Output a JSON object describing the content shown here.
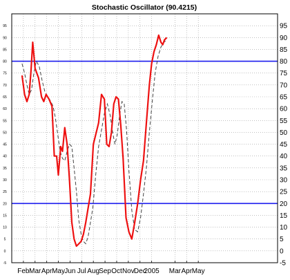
{
  "chart_data": {
    "type": "line",
    "title": "Stochastic Oscillator (90.4215)",
    "xlabel": "",
    "ylabel": "",
    "ylim": [
      -5,
      100
    ],
    "xlim": [
      0,
      22.8
    ],
    "x_tick_labels": [
      {
        "label": "Feb",
        "x": 1
      },
      {
        "label": "Mar",
        "x": 2
      },
      {
        "label": "Apr",
        "x": 3
      },
      {
        "label": "May",
        "x": 4
      },
      {
        "label": "Jun",
        "x": 5
      },
      {
        "label": "Jul",
        "x": 6
      },
      {
        "label": "Aug",
        "x": 7
      },
      {
        "label": "Sep",
        "x": 8
      },
      {
        "label": "Oct",
        "x": 9
      },
      {
        "label": "Nov",
        "x": 10
      },
      {
        "label": "Dec",
        "x": 11
      },
      {
        "label": "2005",
        "x": 12
      },
      {
        "label": "Mar",
        "x": 14
      },
      {
        "label": "Apr",
        "x": 15
      },
      {
        "label": "May",
        "x": 16
      }
    ],
    "y_ticks": [
      100,
      95,
      90,
      85,
      80,
      75,
      70,
      65,
      60,
      55,
      50,
      45,
      40,
      35,
      30,
      25,
      20,
      15,
      10,
      5,
      0,
      -5
    ],
    "y_tick_labels": [
      "",
      "95",
      "90",
      "85",
      "80",
      "75",
      "70",
      "65",
      "60",
      "55",
      "50",
      "45",
      "40",
      "35",
      "30",
      "25",
      "20",
      "15",
      "10",
      "5",
      "0",
      "-5"
    ],
    "reference_lines": [
      80,
      20
    ],
    "grid": true,
    "colors": {
      "stochastic": "#ee1111",
      "signal": "#444444",
      "reference": "#1a1aee",
      "grid": "#999999",
      "axis": "#000000"
    },
    "series": [
      {
        "x": [
          0.88,
          1.1,
          1.3,
          1.5,
          1.65,
          1.8,
          2.0,
          2.3,
          2.55,
          2.75,
          2.95,
          3.2,
          3.45,
          3.65,
          3.85,
          4.0,
          4.2,
          4.35,
          4.55,
          4.75,
          4.95,
          5.15,
          5.35,
          5.55,
          5.75,
          5.95,
          6.15,
          6.35,
          6.55,
          6.75,
          7.0,
          7.2,
          7.45,
          7.7,
          7.95,
          8.15,
          8.35,
          8.55,
          8.75,
          8.95,
          9.15,
          9.35,
          9.55,
          9.8,
          10.05,
          10.3,
          10.55,
          10.8,
          11.05,
          11.3,
          11.55,
          11.8,
          12.0,
          12.2,
          12.4,
          12.6,
          12.8,
          12.95,
          13.1,
          13.3
        ],
        "values": [
          74,
          66,
          63,
          66,
          76,
          88,
          77,
          73,
          65,
          63,
          66,
          64,
          61,
          40,
          40,
          32,
          44,
          42,
          52,
          45,
          30,
          12,
          5,
          2,
          3,
          4,
          7,
          12,
          18,
          24,
          45,
          49,
          54,
          66,
          64,
          45,
          44,
          50,
          62,
          65,
          64,
          53,
          39,
          14,
          8,
          5,
          12,
          20,
          30,
          38,
          54,
          70,
          79,
          84,
          87,
          91,
          88,
          87,
          89,
          90
        ]
      },
      {
        "x": [
          0.88,
          1.1,
          1.3,
          1.5,
          1.7,
          1.9,
          2.1,
          2.35,
          2.6,
          2.85,
          3.1,
          3.35,
          3.55,
          3.75,
          3.95,
          4.15,
          4.35,
          4.55,
          4.75,
          4.95,
          5.15,
          5.35,
          5.55,
          5.75,
          5.95,
          6.15,
          6.35,
          6.55,
          6.75,
          6.95,
          7.2,
          7.45,
          7.7,
          7.95,
          8.2,
          8.45,
          8.65,
          8.85,
          9.05,
          9.25,
          9.45,
          9.65,
          9.85,
          10.05,
          10.3,
          10.55,
          10.8,
          11.05,
          11.3,
          11.55,
          11.8,
          12.05,
          12.3,
          12.55,
          12.8,
          13.05,
          13.3
        ],
        "values": [
          79,
          75,
          70,
          66,
          68,
          75,
          80,
          78,
          72,
          67,
          65,
          63,
          61,
          56,
          49,
          42,
          39,
          38,
          42,
          45,
          44,
          35,
          25,
          13,
          7,
          4,
          3,
          6,
          12,
          18,
          32,
          44,
          51,
          58,
          62,
          57,
          50,
          45,
          49,
          57,
          63,
          62,
          51,
          34,
          17,
          9,
          8,
          14,
          24,
          35,
          50,
          63,
          75,
          82,
          86,
          88,
          89
        ]
      }
    ]
  }
}
